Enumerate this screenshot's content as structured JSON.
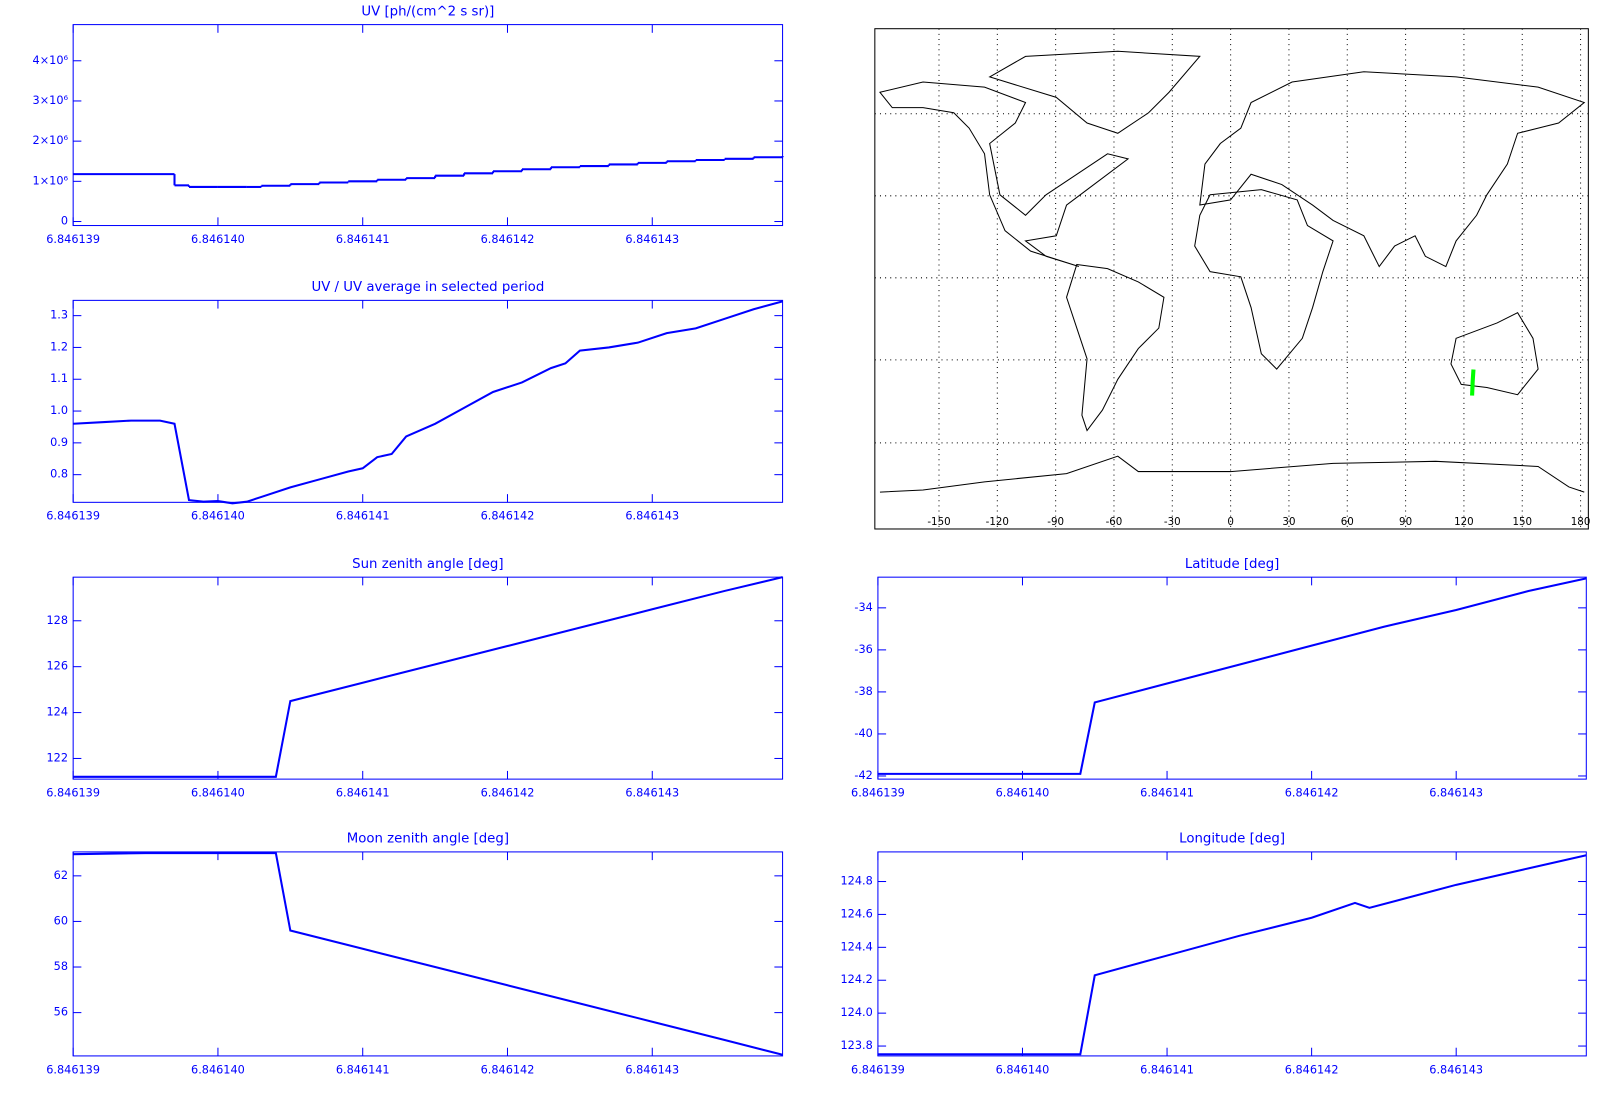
{
  "chart_data": [
    {
      "type": "line",
      "title": "UV [ph/(cm^2 s sr)]",
      "color": "#0000ff",
      "drawstyle": "steps-post",
      "x": [
        6.846139,
        6.8461397,
        6.8461398,
        6.84614,
        6.8461402,
        6.8461403,
        6.8461405,
        6.8461407,
        6.8461409,
        6.8461411,
        6.8461413,
        6.8461415,
        6.8461417,
        6.8461419,
        6.8461421,
        6.8461423,
        6.8461425,
        6.8461427,
        6.8461429,
        6.8461431,
        6.8461433,
        6.8461435,
        6.8461437,
        6.8461439
      ],
      "values": [
        1180000,
        900000,
        860000,
        860000,
        860000,
        890000,
        930000,
        970000,
        1000000,
        1040000,
        1080000,
        1140000,
        1200000,
        1250000,
        1300000,
        1350000,
        1380000,
        1420000,
        1460000,
        1500000,
        1530000,
        1560000,
        1600000,
        1630000
      ],
      "xlim": [
        6.846139,
        6.8461439
      ],
      "xticks": [
        6.846139,
        {
          "value": 6.84614,
          "label": "6.846140"
        },
        6.846141,
        6.846142,
        6.846143
      ],
      "ylim": [
        -100000,
        4900000
      ],
      "yticks": [
        0,
        {
          "value": 1000000,
          "label": "1×10⁶"
        },
        {
          "value": 2000000,
          "label": "2×10⁶"
        },
        {
          "value": 3000000,
          "label": "3×10⁶"
        },
        {
          "value": 4000000,
          "label": "4×10⁶"
        }
      ]
    },
    {
      "type": "line",
      "title": "UV / UV average in selected period",
      "color": "#0000ff",
      "x": [
        6.846139,
        6.8461392,
        6.8461394,
        6.8461396,
        6.8461397,
        6.8461398,
        6.8461399,
        6.84614,
        6.8461401,
        6.8461402,
        6.8461403,
        6.8461405,
        6.8461407,
        6.8461409,
        6.846141,
        6.8461411,
        6.8461412,
        6.8461413,
        6.8461415,
        6.8461417,
        6.8461419,
        6.8461421,
        6.8461423,
        6.8461424,
        6.8461425,
        6.8461427,
        6.8461429,
        6.8461431,
        6.8461433,
        6.8461435,
        6.8461437,
        6.8461439
      ],
      "values": [
        0.96,
        0.965,
        0.97,
        0.97,
        0.96,
        0.72,
        0.715,
        0.717,
        0.71,
        0.715,
        0.73,
        0.76,
        0.785,
        0.81,
        0.82,
        0.855,
        0.865,
        0.92,
        0.96,
        1.01,
        1.06,
        1.09,
        1.135,
        1.15,
        1.19,
        1.2,
        1.215,
        1.245,
        1.26,
        1.29,
        1.32,
        1.345
      ],
      "xlim": [
        6.846139,
        6.8461439
      ],
      "xticks": [
        6.846139,
        {
          "value": 6.84614,
          "label": "6.846140"
        },
        6.846141,
        6.846142,
        6.846143
      ],
      "ylim": [
        0.713,
        1.348
      ],
      "yticks": [
        0.8,
        0.9,
        {
          "value": 1,
          "label": "1.0"
        },
        1.1,
        1.2,
        1.3
      ]
    },
    {
      "type": "map",
      "color": "#00ff00",
      "x": [
        124.2,
        124.5,
        124.9
      ],
      "values": [
        -42,
        -37,
        -32.6
      ],
      "xlim": [
        -183,
        184
      ],
      "ylim": [
        -90,
        90
      ],
      "xticks": [
        -150,
        -120,
        -90,
        -60,
        -30,
        0,
        30,
        60,
        90,
        120,
        150,
        180
      ]
    },
    {
      "type": "line",
      "title": "Sun zenith angle [deg]",
      "color": "#0000ff",
      "x": [
        6.846139,
        6.8461404,
        6.8461405,
        6.846141,
        6.8461415,
        6.846142,
        6.8461425,
        6.846143,
        6.8461435,
        6.8461439
      ],
      "values": [
        121.2,
        121.2,
        124.5,
        125.3,
        126.1,
        126.9,
        127.7,
        128.5,
        129.3,
        129.9
      ],
      "xlim": [
        6.846139,
        6.8461439
      ],
      "xticks": [
        6.846139,
        {
          "value": 6.84614,
          "label": "6.846140"
        },
        6.846141,
        6.846142,
        6.846143
      ],
      "ylim": [
        121.1,
        129.9
      ],
      "yticks": [
        122,
        124,
        126,
        128
      ]
    },
    {
      "type": "line",
      "title": "Latitude [deg]",
      "color": "#0000ff",
      "x": [
        6.846139,
        6.8461404,
        6.8461405,
        6.846141,
        6.8461415,
        6.846142,
        6.8461425,
        6.846143,
        6.8461435,
        6.8461439
      ],
      "values": [
        -41.9,
        -41.9,
        -38.5,
        -37.6,
        -36.7,
        -35.8,
        -34.9,
        -34.1,
        -33.2,
        -32.6
      ],
      "xlim": [
        6.846139,
        6.8461439
      ],
      "xticks": [
        6.846139,
        {
          "value": 6.84614,
          "label": "6.846140"
        },
        6.846141,
        6.846142,
        6.846143
      ],
      "ylim": [
        -42.15,
        -32.54
      ],
      "yticks": [
        -42,
        -40,
        -38,
        -36,
        -34
      ]
    },
    {
      "type": "line",
      "title": "Moon zenith angle [deg]",
      "color": "#0000ff",
      "x": [
        6.846139,
        6.8461395,
        6.8461404,
        6.8461405,
        6.846141,
        6.8461415,
        6.846142,
        6.8461425,
        6.846143,
        6.8461435,
        6.8461439
      ],
      "values": [
        62.95,
        63,
        63,
        59.6,
        58.8,
        58,
        57.2,
        56.4,
        55.6,
        54.8,
        54.15
      ],
      "xlim": [
        6.846139,
        6.8461439
      ],
      "xticks": [
        6.846139,
        {
          "value": 6.84614,
          "label": "6.846140"
        },
        6.846141,
        6.846142,
        6.846143
      ],
      "ylim": [
        54.1,
        63.05
      ],
      "yticks": [
        56,
        58,
        60,
        62
      ]
    },
    {
      "type": "line",
      "title": "Longitude [deg]",
      "color": "#0000ff",
      "x": [
        6.846139,
        6.8461404,
        6.8461405,
        6.846141,
        6.8461415,
        6.846142,
        6.8461423,
        6.8461424,
        6.846143,
        6.8461435,
        6.8461439
      ],
      "values": [
        123.75,
        123.75,
        124.23,
        124.35,
        124.47,
        124.58,
        124.67,
        124.64,
        124.78,
        124.88,
        124.96
      ],
      "xlim": [
        6.846139,
        6.8461439
      ],
      "xticks": [
        6.846139,
        {
          "value": 6.84614,
          "label": "6.846140"
        },
        6.846141,
        6.846142,
        6.846143
      ],
      "ylim": [
        123.74,
        124.98
      ],
      "yticks": [
        123.8,
        {
          "value": 124,
          "label": "124.0"
        },
        124.2,
        124.4,
        124.6,
        124.8
      ]
    }
  ]
}
